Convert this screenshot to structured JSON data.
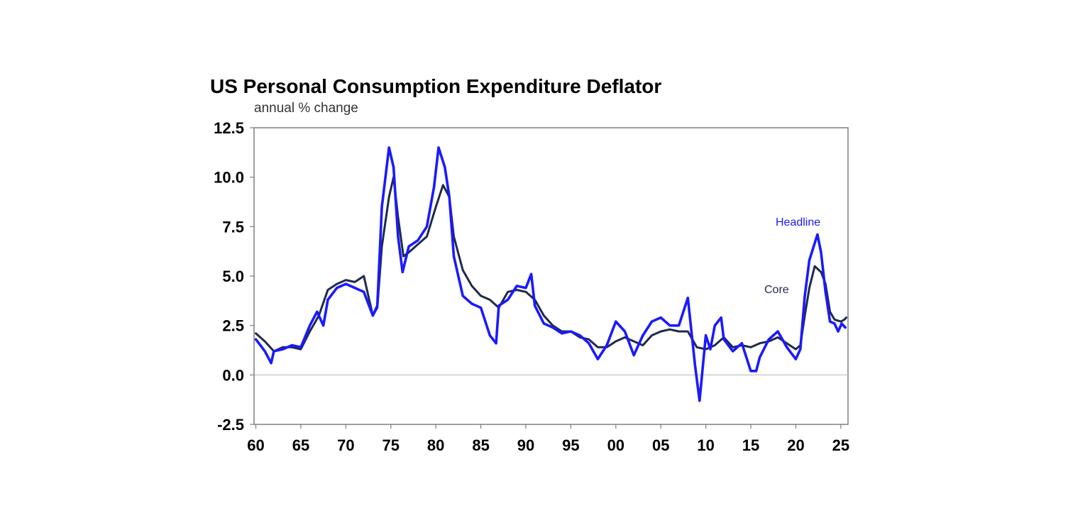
{
  "chart_data": {
    "type": "line",
    "title": "US Personal Consumption Expenditure Deflator",
    "subtitle": "annual % change",
    "xlim": [
      1959.8,
      2025.8
    ],
    "ylim": [
      -2.5,
      12.5
    ],
    "x_ticks": [
      1960,
      1965,
      1970,
      1975,
      1980,
      1985,
      1990,
      1995,
      2000,
      2005,
      2010,
      2015,
      2020,
      2025
    ],
    "x_tick_labels": [
      "60",
      "65",
      "70",
      "75",
      "80",
      "85",
      "90",
      "95",
      "00",
      "05",
      "10",
      "15",
      "20",
      "25"
    ],
    "y_ticks": [
      -2.5,
      0,
      2.5,
      5,
      7.5,
      10,
      12.5
    ],
    "y_tick_labels": [
      "-2.5",
      "0.0",
      "2.5",
      "5.0",
      "7.5",
      "10.0",
      "12.5"
    ],
    "zero_line": true,
    "grid": false,
    "series": [
      {
        "name": "Core",
        "color": "#1f2a4a",
        "points": [
          [
            1960,
            2.1
          ],
          [
            1961,
            1.7
          ],
          [
            1962,
            1.2
          ],
          [
            1963,
            1.4
          ],
          [
            1964,
            1.4
          ],
          [
            1965,
            1.3
          ],
          [
            1966,
            2.2
          ],
          [
            1967,
            3.0
          ],
          [
            1968,
            4.3
          ],
          [
            1969,
            4.6
          ],
          [
            1970,
            4.8
          ],
          [
            1971,
            4.7
          ],
          [
            1972,
            5.0
          ],
          [
            1973,
            3.0
          ],
          [
            1973.5,
            3.4
          ],
          [
            1974,
            6.5
          ],
          [
            1974.8,
            9.0
          ],
          [
            1975.3,
            10.0
          ],
          [
            1975.8,
            8.0
          ],
          [
            1976.4,
            6.0
          ],
          [
            1977,
            6.2
          ],
          [
            1978,
            6.6
          ],
          [
            1979,
            7.0
          ],
          [
            1980,
            8.5
          ],
          [
            1980.8,
            9.6
          ],
          [
            1981.5,
            9.0
          ],
          [
            1982,
            7.0
          ],
          [
            1983,
            5.3
          ],
          [
            1984,
            4.5
          ],
          [
            1985,
            4.0
          ],
          [
            1986,
            3.8
          ],
          [
            1987,
            3.4
          ],
          [
            1988,
            4.2
          ],
          [
            1989,
            4.3
          ],
          [
            1990,
            4.2
          ],
          [
            1991,
            3.8
          ],
          [
            1992,
            3.0
          ],
          [
            1993,
            2.5
          ],
          [
            1994,
            2.2
          ],
          [
            1995,
            2.2
          ],
          [
            1996,
            1.9
          ],
          [
            1997,
            1.8
          ],
          [
            1998,
            1.4
          ],
          [
            1999,
            1.4
          ],
          [
            2000,
            1.7
          ],
          [
            2001,
            1.9
          ],
          [
            2002,
            1.7
          ],
          [
            2003,
            1.5
          ],
          [
            2004,
            2.0
          ],
          [
            2005,
            2.2
          ],
          [
            2006,
            2.3
          ],
          [
            2007,
            2.2
          ],
          [
            2008,
            2.2
          ],
          [
            2009,
            1.4
          ],
          [
            2010,
            1.3
          ],
          [
            2011,
            1.5
          ],
          [
            2012,
            1.9
          ],
          [
            2013,
            1.4
          ],
          [
            2014,
            1.5
          ],
          [
            2015,
            1.4
          ],
          [
            2016,
            1.6
          ],
          [
            2017,
            1.7
          ],
          [
            2018,
            1.9
          ],
          [
            2019,
            1.6
          ],
          [
            2020,
            1.3
          ],
          [
            2020.5,
            1.5
          ],
          [
            2021,
            3.0
          ],
          [
            2021.5,
            4.4
          ],
          [
            2022.1,
            5.5
          ],
          [
            2022.8,
            5.2
          ],
          [
            2023.3,
            4.6
          ],
          [
            2023.8,
            3.2
          ],
          [
            2024.3,
            2.8
          ],
          [
            2025,
            2.7
          ],
          [
            2025.4,
            2.8
          ],
          [
            2025.6,
            2.9
          ]
        ]
      },
      {
        "name": "Headline",
        "color": "#1a1aff",
        "points": [
          [
            1960,
            1.8
          ],
          [
            1960.5,
            1.5
          ],
          [
            1961,
            1.2
          ],
          [
            1961.7,
            0.6
          ],
          [
            1962,
            1.2
          ],
          [
            1963,
            1.3
          ],
          [
            1964,
            1.5
          ],
          [
            1965,
            1.4
          ],
          [
            1966,
            2.5
          ],
          [
            1966.8,
            3.2
          ],
          [
            1967.5,
            2.5
          ],
          [
            1968,
            3.8
          ],
          [
            1969,
            4.4
          ],
          [
            1970,
            4.6
          ],
          [
            1971,
            4.4
          ],
          [
            1972,
            4.2
          ],
          [
            1973,
            3.0
          ],
          [
            1973.5,
            3.5
          ],
          [
            1974,
            8.5
          ],
          [
            1974.8,
            11.5
          ],
          [
            1975.3,
            10.5
          ],
          [
            1975.8,
            7.0
          ],
          [
            1976.3,
            5.2
          ],
          [
            1977,
            6.5
          ],
          [
            1978,
            6.8
          ],
          [
            1979,
            7.5
          ],
          [
            1979.8,
            9.5
          ],
          [
            1980.3,
            11.5
          ],
          [
            1981,
            10.5
          ],
          [
            1981.5,
            9.0
          ],
          [
            1982,
            6.0
          ],
          [
            1983,
            4.0
          ],
          [
            1984,
            3.6
          ],
          [
            1985,
            3.4
          ],
          [
            1986,
            2.0
          ],
          [
            1986.7,
            1.6
          ],
          [
            1987,
            3.5
          ],
          [
            1988,
            3.8
          ],
          [
            1989,
            4.5
          ],
          [
            1990,
            4.4
          ],
          [
            1990.6,
            5.1
          ],
          [
            1991,
            3.5
          ],
          [
            1992,
            2.6
          ],
          [
            1993,
            2.4
          ],
          [
            1994,
            2.1
          ],
          [
            1995,
            2.2
          ],
          [
            1996,
            2.0
          ],
          [
            1997,
            1.6
          ],
          [
            1998,
            0.8
          ],
          [
            1999,
            1.5
          ],
          [
            2000,
            2.7
          ],
          [
            2001,
            2.2
          ],
          [
            2002,
            1.0
          ],
          [
            2003,
            2.0
          ],
          [
            2004,
            2.7
          ],
          [
            2005,
            2.9
          ],
          [
            2006,
            2.5
          ],
          [
            2007,
            2.5
          ],
          [
            2008,
            3.9
          ],
          [
            2008.8,
            0.5
          ],
          [
            2009.3,
            -1.3
          ],
          [
            2010,
            2.0
          ],
          [
            2010.5,
            1.3
          ],
          [
            2011,
            2.5
          ],
          [
            2011.7,
            2.9
          ],
          [
            2012,
            1.8
          ],
          [
            2013,
            1.2
          ],
          [
            2014,
            1.6
          ],
          [
            2015,
            0.2
          ],
          [
            2015.6,
            0.2
          ],
          [
            2016,
            0.9
          ],
          [
            2017,
            1.8
          ],
          [
            2018,
            2.2
          ],
          [
            2019,
            1.4
          ],
          [
            2020,
            0.8
          ],
          [
            2020.5,
            1.3
          ],
          [
            2021,
            4.0
          ],
          [
            2021.5,
            5.8
          ],
          [
            2022.4,
            7.1
          ],
          [
            2022.8,
            6.2
          ],
          [
            2023.3,
            4.2
          ],
          [
            2023.8,
            2.7
          ],
          [
            2024.3,
            2.6
          ],
          [
            2024.7,
            2.2
          ],
          [
            2025.1,
            2.6
          ],
          [
            2025.5,
            2.4
          ]
        ]
      }
    ]
  }
}
